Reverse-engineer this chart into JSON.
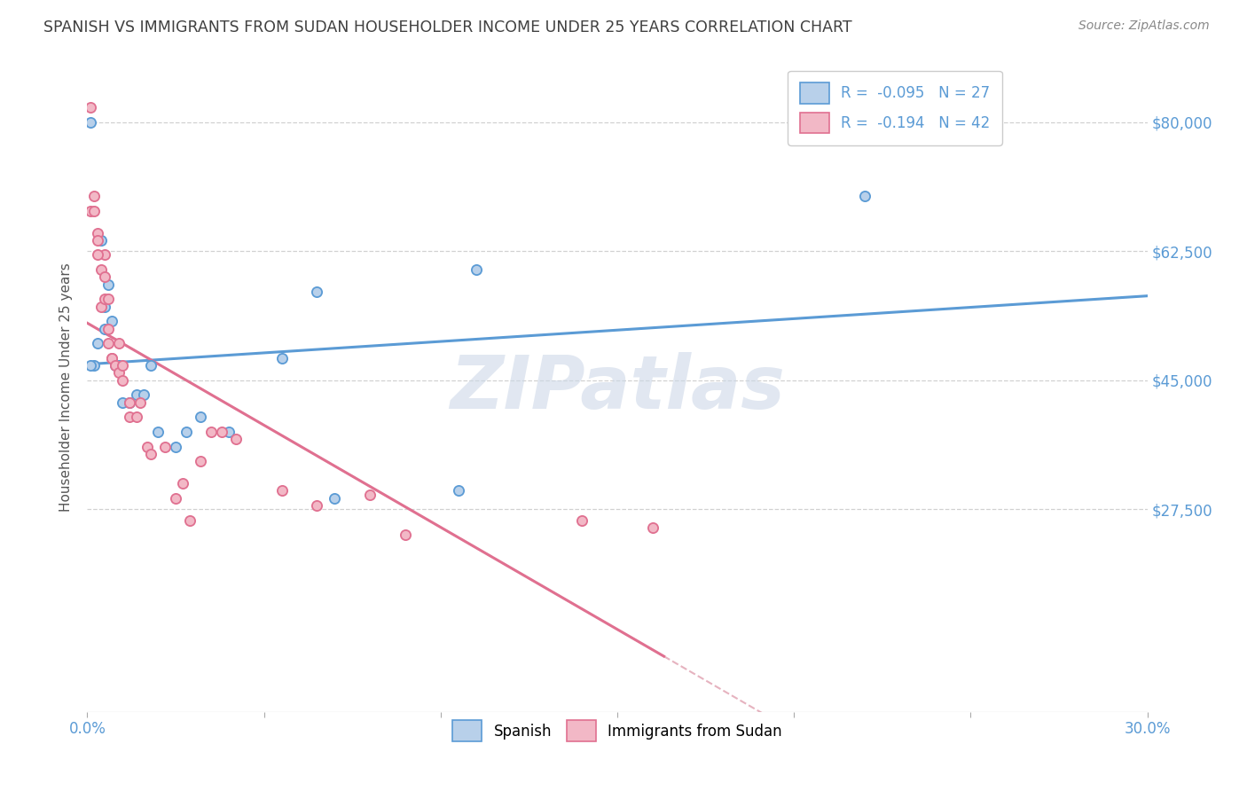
{
  "title": "SPANISH VS IMMIGRANTS FROM SUDAN HOUSEHOLDER INCOME UNDER 25 YEARS CORRELATION CHART",
  "source": "Source: ZipAtlas.com",
  "ylabel": "Householder Income Under 25 years",
  "xlim": [
    0.0,
    0.3
  ],
  "ylim": [
    0,
    88000
  ],
  "xtick_positions": [
    0.0,
    0.05,
    0.1,
    0.15,
    0.2,
    0.25,
    0.3
  ],
  "xtick_labels": [
    "0.0%",
    "",
    "",
    "",
    "",
    "",
    "30.0%"
  ],
  "ytick_values": [
    27500,
    45000,
    62500,
    80000
  ],
  "ytick_labels": [
    "$27,500",
    "$45,000",
    "$62,500",
    "$80,000"
  ],
  "legend_r_spanish": "-0.095",
  "legend_n_spanish": "27",
  "legend_r_sudan": "-0.194",
  "legend_n_sudan": "42",
  "spanish_face_color": "#b8d0ea",
  "spanish_edge_color": "#5b9bd5",
  "sudan_face_color": "#f2b8c6",
  "sudan_edge_color": "#e07090",
  "spanish_line_color": "#5b9bd5",
  "sudan_line_color": "#e07090",
  "dashed_line_color": "#e0a0b0",
  "grid_color": "#cccccc",
  "title_color": "#404040",
  "yaxis_tick_color": "#5b9bd5",
  "watermark": "ZIPatlas",
  "watermark_color": "#cdd8e8",
  "background_color": "#ffffff",
  "spanish_x": [
    0.001,
    0.002,
    0.003,
    0.004,
    0.005,
    0.005,
    0.006,
    0.007,
    0.008,
    0.009,
    0.01,
    0.012,
    0.014,
    0.016,
    0.018,
    0.02,
    0.025,
    0.028,
    0.032,
    0.04,
    0.055,
    0.065,
    0.07,
    0.105,
    0.11,
    0.22,
    0.001
  ],
  "spanish_y": [
    80000,
    47000,
    50000,
    64000,
    52000,
    55000,
    58000,
    53000,
    47000,
    47000,
    42000,
    42000,
    43000,
    43000,
    47000,
    38000,
    36000,
    38000,
    40000,
    38000,
    48000,
    57000,
    29000,
    30000,
    60000,
    70000,
    47000
  ],
  "sudan_x": [
    0.001,
    0.001,
    0.002,
    0.002,
    0.003,
    0.003,
    0.004,
    0.004,
    0.005,
    0.005,
    0.005,
    0.006,
    0.006,
    0.007,
    0.007,
    0.008,
    0.009,
    0.009,
    0.01,
    0.01,
    0.012,
    0.014,
    0.015,
    0.017,
    0.018,
    0.022,
    0.025,
    0.027,
    0.032,
    0.035,
    0.038,
    0.042,
    0.055,
    0.065,
    0.08,
    0.09,
    0.14,
    0.16,
    0.003,
    0.006,
    0.012,
    0.029
  ],
  "sudan_y": [
    82000,
    68000,
    68000,
    70000,
    65000,
    64000,
    60000,
    55000,
    62000,
    59000,
    56000,
    56000,
    52000,
    48000,
    48000,
    47000,
    50000,
    46000,
    47000,
    45000,
    40000,
    40000,
    42000,
    36000,
    35000,
    36000,
    29000,
    31000,
    34000,
    38000,
    38000,
    37000,
    30000,
    28000,
    29500,
    24000,
    26000,
    25000,
    62000,
    50000,
    42000,
    26000
  ]
}
